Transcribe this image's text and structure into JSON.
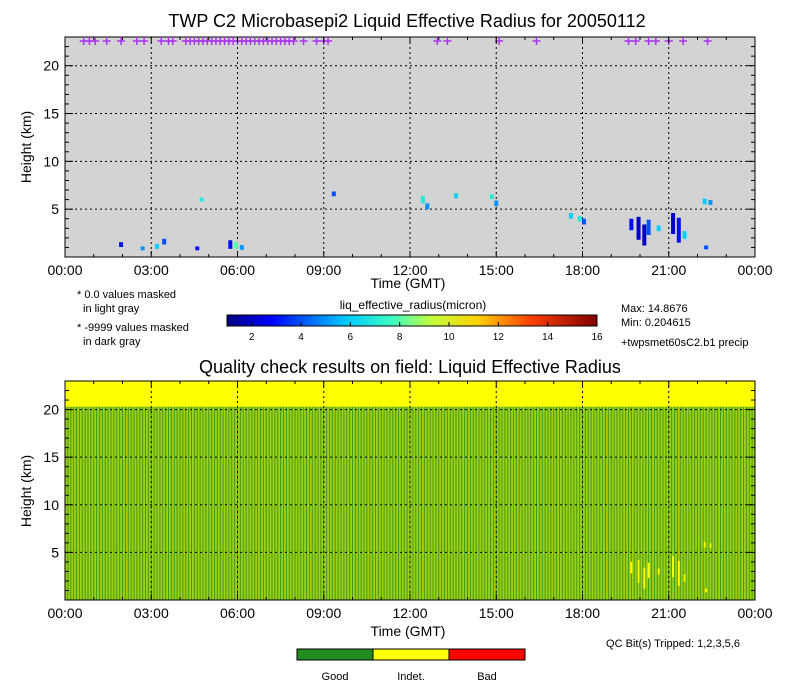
{
  "chart_data": [
    {
      "type": "heatmap",
      "title": "TWP C2 Microbasepi2 Liquid Effective Radius for 20050112",
      "xlabel": "Time (GMT)",
      "ylabel": "Height (km)",
      "xlim": [
        0,
        24
      ],
      "ylim": [
        0,
        23
      ],
      "x_ticks": [
        "00:00",
        "03:00",
        "06:00",
        "09:00",
        "12:00",
        "15:00",
        "18:00",
        "21:00",
        "00:00"
      ],
      "y_ticks": [
        "5",
        "10",
        "15",
        "20"
      ],
      "y_tick_values": [
        5,
        10,
        15,
        20
      ],
      "grid": true,
      "background_color": "#d3d3d3",
      "colorbar": {
        "label": "liq_effective_radius(micron)",
        "range": [
          1,
          16
        ],
        "ticks": [
          "2",
          "4",
          "6",
          "8",
          "10",
          "12",
          "14",
          "16"
        ],
        "tick_values": [
          2,
          4,
          6,
          8,
          10,
          12,
          14,
          16
        ]
      },
      "notes": [
        "* 0.0 values masked",
        "in light gray",
        "* -9999 values masked",
        "in dark gray"
      ],
      "stats": {
        "max": "Max: 14.8676",
        "min": "Min: 0.204615"
      },
      "precip_label": "+twpsmet60sC2.b1 precip",
      "precip_color": "#aa33ee",
      "precip_times": [
        0.65,
        0.85,
        1.05,
        1.45,
        1.95,
        2.5,
        2.75,
        3.35,
        3.6,
        3.75,
        4.2,
        4.35,
        4.5,
        4.65,
        4.8,
        4.95,
        5.1,
        5.25,
        5.4,
        5.55,
        5.7,
        5.85,
        6.0,
        6.15,
        6.3,
        6.45,
        6.6,
        6.75,
        6.9,
        7.05,
        7.2,
        7.35,
        7.5,
        7.65,
        7.8,
        7.95,
        8.3,
        8.75,
        9.0,
        9.15,
        12.95,
        13.3,
        15.1,
        16.4,
        19.6,
        19.85,
        20.3,
        20.55,
        21.0,
        21.5,
        22.35
      ],
      "cloud_patches": [
        {
          "t": 1.95,
          "h": 1.3,
          "dh": 0.5,
          "v": 3
        },
        {
          "t": 2.7,
          "h": 0.9,
          "dh": 0.4,
          "v": 5
        },
        {
          "t": 3.2,
          "h": 1.1,
          "dh": 0.5,
          "v": 6
        },
        {
          "t": 3.45,
          "h": 1.6,
          "dh": 0.6,
          "v": 4
        },
        {
          "t": 4.6,
          "h": 0.9,
          "dh": 0.4,
          "v": 3
        },
        {
          "t": 4.75,
          "h": 6.0,
          "dh": 0.4,
          "v": 7
        },
        {
          "t": 5.75,
          "h": 1.3,
          "dh": 0.9,
          "v": 3
        },
        {
          "t": 5.95,
          "h": 1.2,
          "dh": 0.7,
          "v": 8
        },
        {
          "t": 6.15,
          "h": 1.0,
          "dh": 0.5,
          "v": 5
        },
        {
          "t": 9.35,
          "h": 6.6,
          "dh": 0.5,
          "v": 4
        },
        {
          "t": 12.45,
          "h": 6.0,
          "dh": 0.8,
          "v": 7
        },
        {
          "t": 12.6,
          "h": 5.3,
          "dh": 0.6,
          "v": 5
        },
        {
          "t": 13.6,
          "h": 6.4,
          "dh": 0.5,
          "v": 6
        },
        {
          "t": 14.85,
          "h": 6.3,
          "dh": 0.5,
          "v": 7
        },
        {
          "t": 15.0,
          "h": 5.6,
          "dh": 0.6,
          "v": 5
        },
        {
          "t": 17.6,
          "h": 4.3,
          "dh": 0.6,
          "v": 6
        },
        {
          "t": 17.9,
          "h": 4.0,
          "dh": 0.6,
          "v": 7
        },
        {
          "t": 18.05,
          "h": 3.7,
          "dh": 0.6,
          "v": 4
        },
        {
          "t": 19.7,
          "h": 3.4,
          "dh": 1.2,
          "v": 3
        },
        {
          "t": 19.95,
          "h": 3.0,
          "dh": 2.4,
          "v": 2
        },
        {
          "t": 20.15,
          "h": 2.3,
          "dh": 2.2,
          "v": 2
        },
        {
          "t": 20.3,
          "h": 3.1,
          "dh": 1.6,
          "v": 4
        },
        {
          "t": 20.65,
          "h": 3.0,
          "dh": 0.6,
          "v": 6
        },
        {
          "t": 21.15,
          "h": 3.5,
          "dh": 2.2,
          "v": 2
        },
        {
          "t": 21.35,
          "h": 2.8,
          "dh": 2.6,
          "v": 3
        },
        {
          "t": 21.55,
          "h": 2.3,
          "dh": 0.8,
          "v": 6
        },
        {
          "t": 22.25,
          "h": 5.8,
          "dh": 0.6,
          "v": 6
        },
        {
          "t": 22.45,
          "h": 5.7,
          "dh": 0.5,
          "v": 5
        },
        {
          "t": 22.3,
          "h": 1.0,
          "dh": 0.4,
          "v": 4
        }
      ]
    },
    {
      "type": "heatmap",
      "title": "Quality check results on field: Liquid Effective Radius",
      "xlabel": "Time (GMT)",
      "ylabel": "Height (km)",
      "xlim": [
        0,
        24
      ],
      "ylim": [
        0,
        23
      ],
      "x_ticks": [
        "00:00",
        "03:00",
        "06:00",
        "09:00",
        "12:00",
        "15:00",
        "18:00",
        "21:00",
        "00:00"
      ],
      "y_ticks": [
        "5",
        "10",
        "15",
        "20"
      ],
      "y_tick_values": [
        5,
        10,
        15,
        20
      ],
      "grid": true,
      "upper_band_start_km": 20.3,
      "stripe_count": 240,
      "qc_label": "QC Bit(s) Tripped: 1,2,3,5,6",
      "legend": [
        {
          "label": "Good",
          "color": "#228b22"
        },
        {
          "label": "Indet.",
          "color": "#ffff00"
        },
        {
          "label": "Bad",
          "color": "#ff0000"
        }
      ]
    }
  ]
}
